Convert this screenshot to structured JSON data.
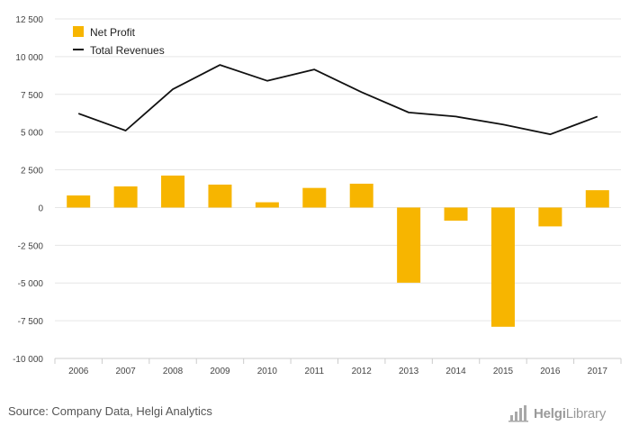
{
  "chart_data": {
    "type": "bar+line",
    "categories": [
      "2006",
      "2007",
      "2008",
      "2009",
      "2010",
      "2011",
      "2012",
      "2013",
      "2014",
      "2015",
      "2016",
      "2017"
    ],
    "series": [
      {
        "name": "Net Profit",
        "type": "bar",
        "color": "#f7b500",
        "values": [
          800,
          1400,
          2120,
          1520,
          350,
          1300,
          1580,
          -4980,
          -870,
          -7900,
          -1250,
          1150
        ]
      },
      {
        "name": "Total Revenues",
        "type": "line",
        "color": "#111111",
        "values": [
          6230,
          5100,
          7840,
          9450,
          8400,
          9150,
          7650,
          6300,
          6030,
          5500,
          4850,
          6030
        ]
      }
    ],
    "ylim": [
      -10000,
      12500
    ],
    "yticks": [
      12500,
      10000,
      7500,
      5000,
      2500,
      0,
      -2500,
      -5000,
      -7500,
      -10000
    ],
    "ytick_labels": [
      "12 500",
      "10 000",
      "7 500",
      "5 000",
      "2 500",
      "0",
      "-2 500",
      "-5 000",
      "-7 500",
      "-10 000"
    ],
    "grid": true,
    "legend_position": "top-left"
  },
  "footer": {
    "source": "Source: Company Data, Helgi Analytics",
    "brand_bold": "Helgi",
    "brand_light": "Library"
  },
  "icons": {
    "brand_logo": "helgi-logo-icon"
  }
}
